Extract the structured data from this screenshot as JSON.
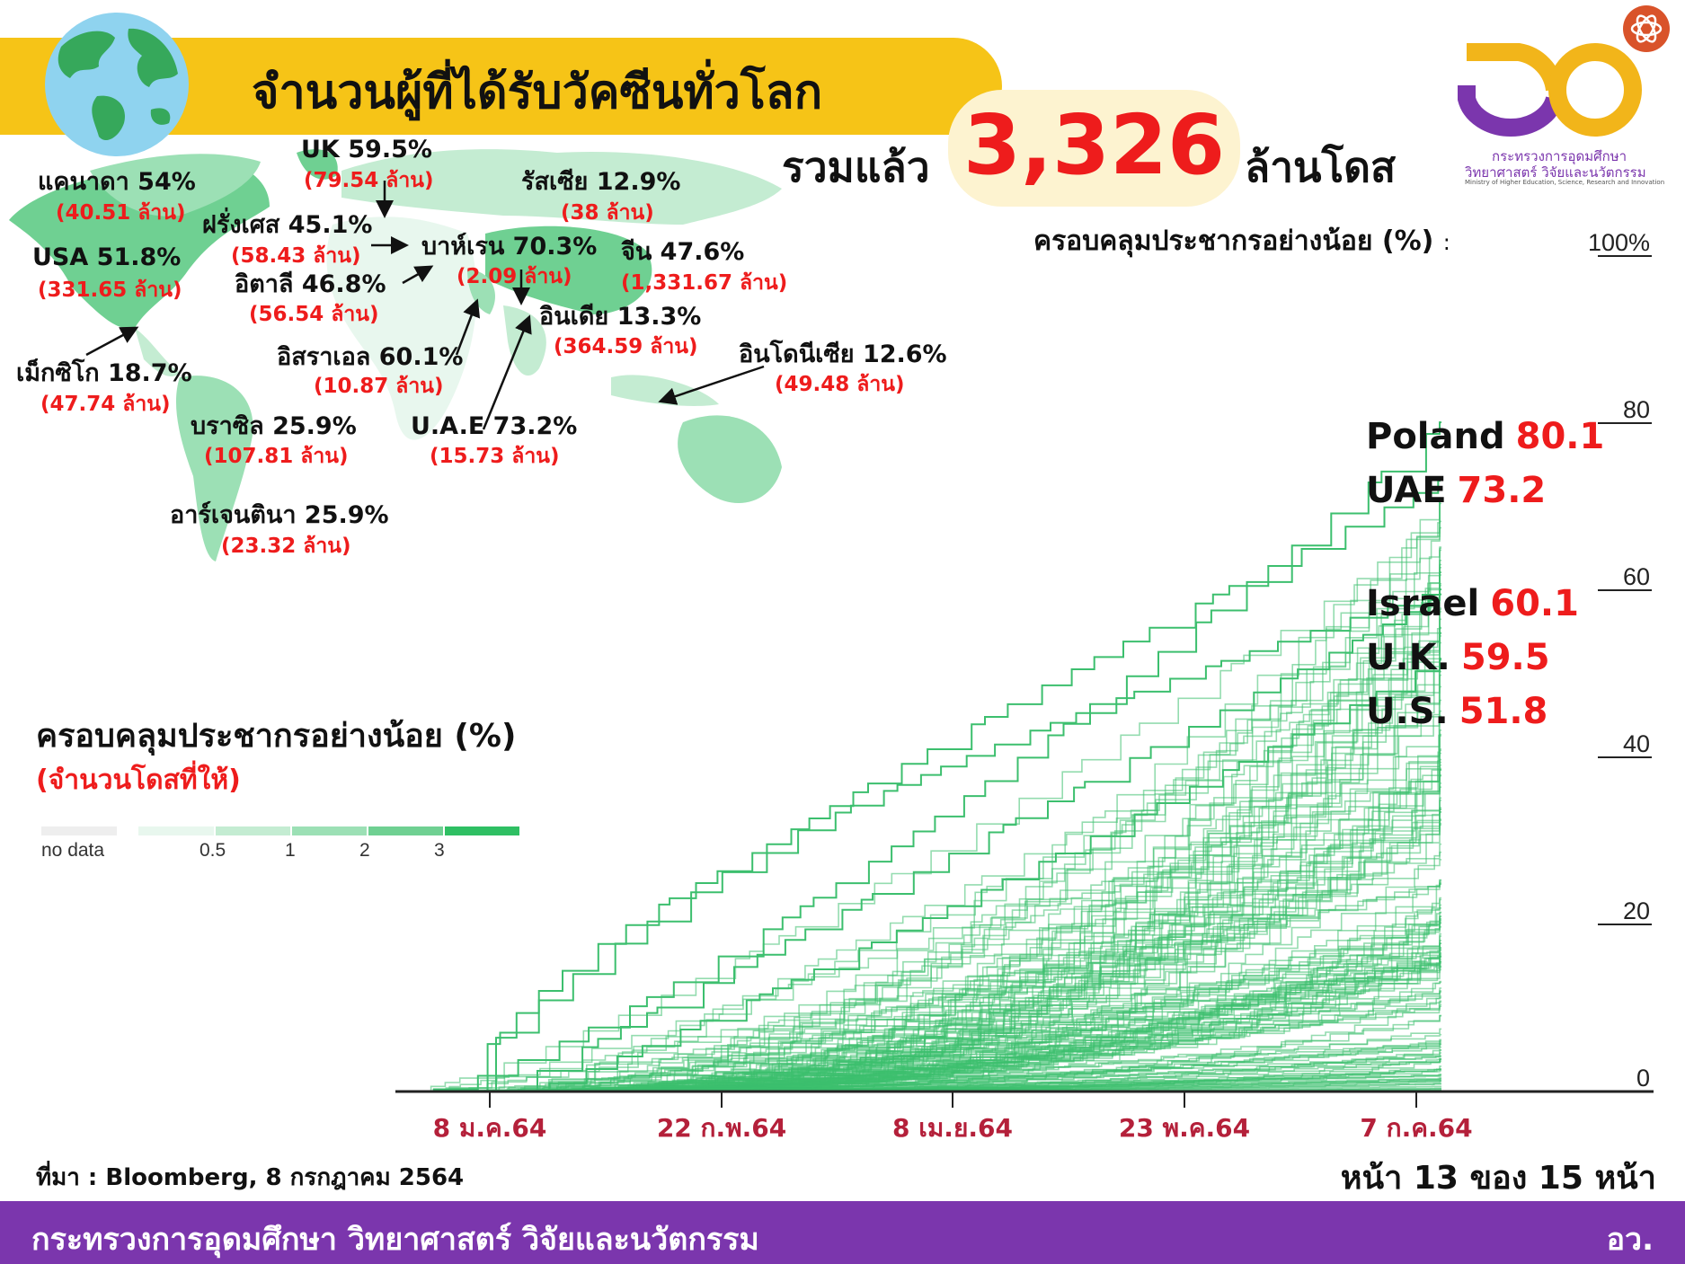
{
  "header": {
    "title": "จำนวนผู้ที่ได้รับวัคซีนทั่วโลก",
    "total_prefix": "รวมแล้ว",
    "total_value": "3,326",
    "total_suffix": "ล้านโดส"
  },
  "logo": {
    "line1": "กระทรวงการอุดมศึกษา",
    "line2": "วิทยาศาสตร์ วิจัยและนวัตกรรม",
    "line3": "Ministry of Higher Education, Science, Research and Innovation"
  },
  "map": {
    "labels": [
      {
        "name": "UK 59.5%",
        "doses": "(79.54 ล้าน)"
      },
      {
        "name": "แคนาดา 54%",
        "doses": "(40.51 ล้าน)"
      },
      {
        "name": "รัสเซีย 12.9%",
        "doses": "(38 ล้าน)"
      },
      {
        "name": "ฝรั่งเศส 45.1%",
        "doses": "(58.43 ล้าน)"
      },
      {
        "name": "บาห์เรน 70.3%",
        "doses": "(2.09 ล้าน)"
      },
      {
        "name": "จีน 47.6%",
        "doses": "(1,331.67 ล้าน)"
      },
      {
        "name": "USA 51.8%",
        "doses": "(331.65 ล้าน)"
      },
      {
        "name": "อิตาลี 46.8%",
        "doses": "(56.54 ล้าน)"
      },
      {
        "name": "อินเดีย 13.3%",
        "doses": "(364.59 ล้าน)"
      },
      {
        "name": "อิสราเอล 60.1%",
        "doses": "(10.87 ล้าน)"
      },
      {
        "name": "อินโดนีเซีย 12.6%",
        "doses": "(49.48 ล้าน)"
      },
      {
        "name": "เม็กซิโก 18.7%",
        "doses": "(47.74 ล้าน)"
      },
      {
        "name": "บราซิล 25.9%",
        "doses": "(107.81 ล้าน)"
      },
      {
        "name": "U.A.E 73.2%",
        "doses": "(15.73 ล้าน)"
      },
      {
        "name": "อาร์เจนตินา 25.9%",
        "doses": "(23.32 ล้าน)"
      }
    ],
    "legend": {
      "title": "ครอบคลุมประชากรอย่างน้อย (%)",
      "subtitle": "(จำนวนโดสที่ให้)",
      "no_data": "no data",
      "ticks": [
        "0.5",
        "1",
        "2",
        "3"
      ],
      "colors": [
        "#eeeeee",
        "#e8f7ee",
        "#c4ecd2",
        "#9ce0b5",
        "#6fd092",
        "#2fbf63"
      ]
    }
  },
  "chart_data": {
    "type": "line",
    "title": "ครอบคลุมประชากรอย่างน้อย (%)",
    "title_sep": ":",
    "xlabel": "",
    "ylabel": "",
    "xticks": [
      "8 ม.ค.64",
      "22 ก.พ.64",
      "8 เม.ย.64",
      "23 พ.ค.64",
      "7 ก.ค.64"
    ],
    "yticks": [
      "0",
      "20",
      "40",
      "60",
      "80",
      "100%"
    ],
    "ylim": [
      0,
      100
    ],
    "line_color": "#3cbf6e",
    "grid": false,
    "series": [
      {
        "name": "Poland",
        "end_value": "80.1"
      },
      {
        "name": "UAE",
        "end_value": "73.2"
      },
      {
        "name": "Israel",
        "end_value": "60.1"
      },
      {
        "name": "U.K.",
        "end_value": "59.5"
      },
      {
        "name": "U.S.",
        "end_value": "51.8"
      }
    ]
  },
  "footer": {
    "source": "ที่มา : Bloomberg, 8 กรกฎาคม 2564",
    "page": "หน้า 13 ของ 15 หน้า",
    "ministry": "กระทรวงการอุดมศึกษา วิทยาศาสตร์ วิจัยและนวัตกรรม",
    "abbr": "อว."
  }
}
